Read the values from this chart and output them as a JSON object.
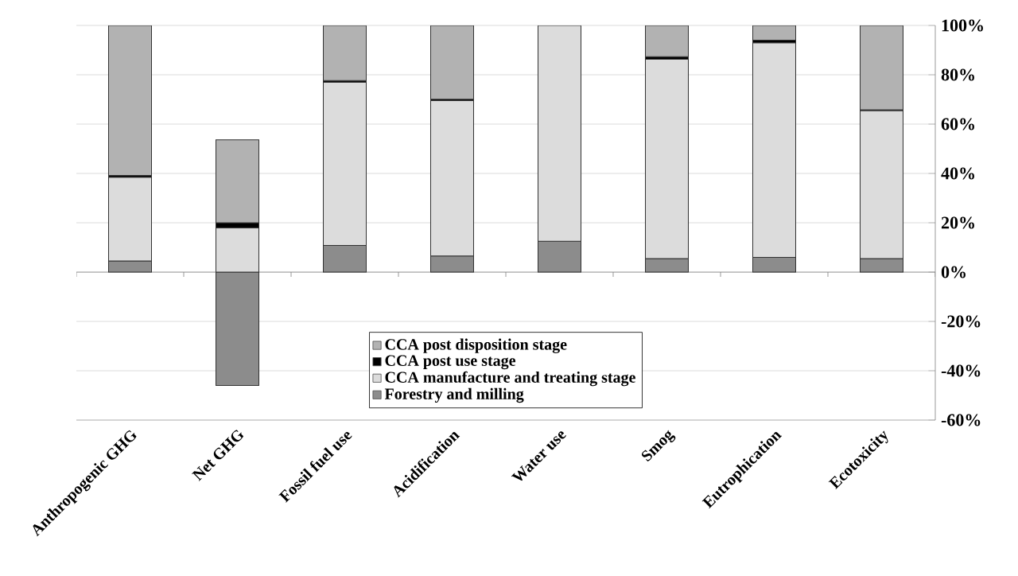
{
  "chart_data": {
    "type": "bar",
    "stacked": true,
    "categories": [
      "Anthropogenic GHG",
      "Net GHG",
      "Fossil fuel use",
      "Acidification",
      "Water use",
      "Smog",
      "Eutrophication",
      "Ecotoxicity"
    ],
    "series": [
      {
        "name": "Forestry and milling",
        "color": "#8c8c8c",
        "values": [
          4.5,
          -46,
          10.8,
          6.5,
          12.5,
          5.5,
          6,
          5.5
        ]
      },
      {
        "name": "CCA manufacture and treating stage",
        "color": "#dcdcdc",
        "values": [
          34,
          18,
          66.2,
          63,
          87.5,
          80.8,
          87,
          60
        ]
      },
      {
        "name": "CCA post use stage",
        "color": "#000000",
        "values": [
          0.7,
          2,
          0.7,
          0.6,
          0,
          1,
          1,
          0.3
        ]
      },
      {
        "name": "CCA post disposition stage",
        "color": "#b2b2b2",
        "values": [
          60.8,
          33.6,
          22.3,
          29.9,
          0,
          12.7,
          6,
          34.2
        ]
      }
    ],
    "ylim": [
      -60,
      100
    ],
    "yticks": [
      {
        "value": -60,
        "label": "-60%"
      },
      {
        "value": -40,
        "label": "-40%"
      },
      {
        "value": -20,
        "label": "-20%"
      },
      {
        "value": 0,
        "label": "0%"
      },
      {
        "value": 20,
        "label": "20%"
      },
      {
        "value": 40,
        "label": "40%"
      },
      {
        "value": 60,
        "label": "60%"
      },
      {
        "value": 80,
        "label": "80%"
      },
      {
        "value": 100,
        "label": "100%"
      }
    ],
    "grid": "y",
    "legend": "bottom"
  }
}
